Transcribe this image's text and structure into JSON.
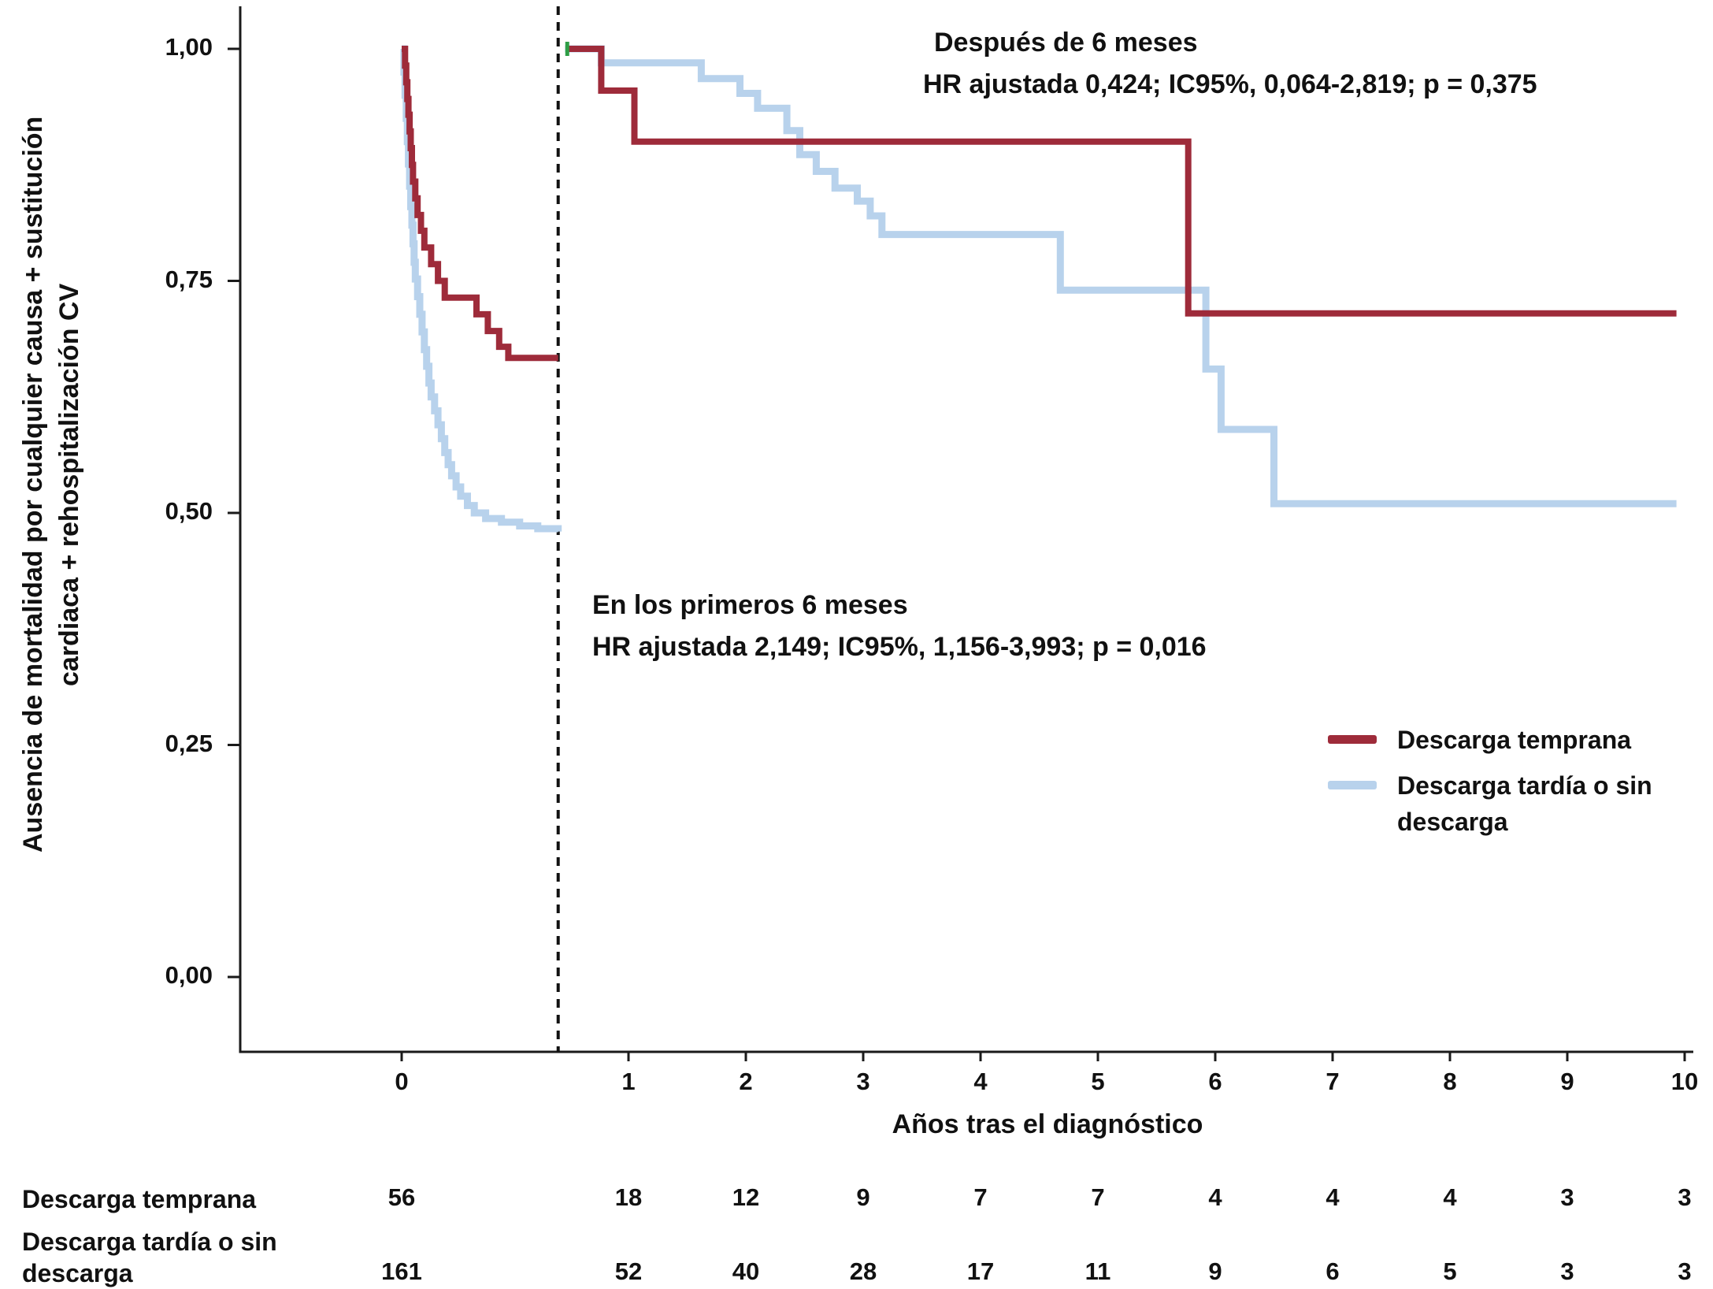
{
  "chart_data": {
    "type": "line",
    "subtype": "kaplan_meier_landmark_step",
    "title": "",
    "xlabel": "Años tras el diagnóstico",
    "ylabel_lines": [
      "Ausencia de mortalidad por cualquier causa + sustitución",
      "cardiaca + rehospitalización CV"
    ],
    "xlim": [
      0,
      10
    ],
    "ylim": [
      0.0,
      1.0
    ],
    "grid": false,
    "legend_position": "middle-right",
    "xticks": [
      0,
      1,
      2,
      3,
      4,
      5,
      6,
      7,
      8,
      9,
      10
    ],
    "yticks": [
      {
        "v": 1.0,
        "label": "1,00"
      },
      {
        "v": 0.75,
        "label": "0,75"
      },
      {
        "v": 0.5,
        "label": "0,50"
      },
      {
        "v": 0.25,
        "label": "0,25"
      },
      {
        "v": 0.0,
        "label": "0,00"
      }
    ],
    "landmark_x_years": 0.69,
    "colors": {
      "axis": "#1a1a1a",
      "landmark": "#111111"
    },
    "annotations": {
      "after": {
        "line1": "Después de 6 meses",
        "line2": "HR ajustada 0,424; IC95%, 0,064-2,819; p = 0,375"
      },
      "before": {
        "line1": "En los primeros 6 meses",
        "line2": "HR ajustada 2,149; IC95%, 1,156-3,993; p = 0,016"
      }
    },
    "censor_mark": {
      "x": 0.73,
      "y": 1.0,
      "color": "#2e9e46"
    },
    "series": [
      {
        "name": "Descarga temprana",
        "color": "#9e2b3a",
        "segments": [
          [
            [
              0,
              1.0
            ],
            [
              0.015,
              0.982
            ],
            [
              0.02,
              0.964
            ],
            [
              0.025,
              0.946
            ],
            [
              0.03,
              0.929
            ],
            [
              0.035,
              0.911
            ],
            [
              0.04,
              0.893
            ],
            [
              0.045,
              0.875
            ],
            [
              0.05,
              0.857
            ],
            [
              0.06,
              0.839
            ],
            [
              0.07,
              0.821
            ],
            [
              0.085,
              0.804
            ],
            [
              0.1,
              0.786
            ],
            [
              0.13,
              0.768
            ],
            [
              0.16,
              0.75
            ],
            [
              0.19,
              0.732
            ],
            [
              0.33,
              0.714
            ],
            [
              0.38,
              0.696
            ],
            [
              0.43,
              0.679
            ],
            [
              0.47,
              0.667
            ],
            [
              0.69,
              0.667
            ]
          ],
          [
            [
              0.73,
              1.0
            ],
            [
              0.88,
              0.955
            ],
            [
              1.05,
              0.9
            ],
            [
              5.77,
              0.715
            ],
            [
              9.93,
              0.715
            ]
          ]
        ]
      },
      {
        "name": "Descarga tardía o sin descarga",
        "color": "#b8d2ec",
        "segments": [
          [
            [
              0,
              1.0
            ],
            [
              0.01,
              0.975
            ],
            [
              0.015,
              0.95
            ],
            [
              0.02,
              0.925
            ],
            [
              0.025,
              0.9
            ],
            [
              0.03,
              0.876
            ],
            [
              0.035,
              0.852
            ],
            [
              0.04,
              0.83
            ],
            [
              0.045,
              0.81
            ],
            [
              0.05,
              0.79
            ],
            [
              0.055,
              0.77
            ],
            [
              0.06,
              0.752
            ],
            [
              0.07,
              0.733
            ],
            [
              0.08,
              0.714
            ],
            [
              0.09,
              0.695
            ],
            [
              0.1,
              0.676
            ],
            [
              0.11,
              0.658
            ],
            [
              0.12,
              0.64
            ],
            [
              0.13,
              0.625
            ],
            [
              0.145,
              0.61
            ],
            [
              0.16,
              0.595
            ],
            [
              0.175,
              0.58
            ],
            [
              0.19,
              0.565
            ],
            [
              0.205,
              0.552
            ],
            [
              0.22,
              0.54
            ],
            [
              0.24,
              0.528
            ],
            [
              0.26,
              0.518
            ],
            [
              0.29,
              0.508
            ],
            [
              0.32,
              0.5
            ],
            [
              0.37,
              0.494
            ],
            [
              0.44,
              0.49
            ],
            [
              0.52,
              0.486
            ],
            [
              0.6,
              0.483
            ],
            [
              0.69,
              0.48
            ]
          ],
          [
            [
              0.72,
              1.0
            ],
            [
              0.88,
              0.985
            ],
            [
              1.62,
              0.968
            ],
            [
              1.95,
              0.952
            ],
            [
              2.1,
              0.936
            ],
            [
              2.35,
              0.912
            ],
            [
              2.46,
              0.886
            ],
            [
              2.6,
              0.868
            ],
            [
              2.76,
              0.85
            ],
            [
              2.95,
              0.836
            ],
            [
              3.06,
              0.82
            ],
            [
              3.16,
              0.8
            ],
            [
              4.68,
              0.74
            ],
            [
              5.92,
              0.655
            ],
            [
              6.05,
              0.59
            ],
            [
              6.5,
              0.51
            ],
            [
              9.93,
              0.51
            ]
          ]
        ]
      }
    ],
    "risk_table": {
      "x": [
        0,
        1,
        2,
        3,
        4,
        5,
        6,
        7,
        8,
        9,
        10
      ],
      "rows": [
        {
          "label": "Descarga temprana",
          "counts": [
            56,
            18,
            12,
            9,
            7,
            7,
            4,
            4,
            4,
            3,
            3
          ]
        },
        {
          "label": "Descarga tardía o sin descarga",
          "counts": [
            161,
            52,
            40,
            28,
            17,
            11,
            9,
            6,
            5,
            3,
            3
          ]
        }
      ]
    }
  }
}
